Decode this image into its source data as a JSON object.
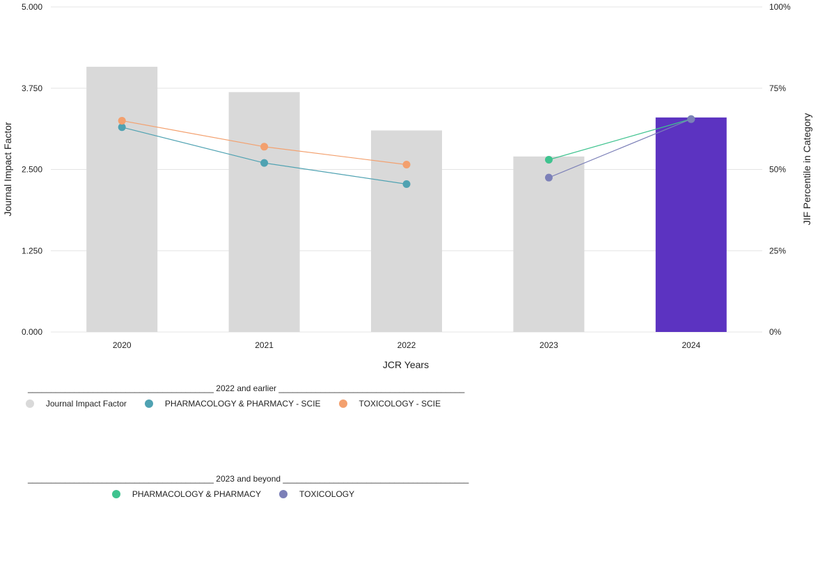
{
  "chart_data": {
    "type": "bar",
    "categories": [
      "2020",
      "2021",
      "2022",
      "2023",
      "2024"
    ],
    "bars": {
      "name": "Journal Impact Factor",
      "values": [
        4.08,
        3.69,
        3.1,
        2.7,
        3.3
      ],
      "colors": [
        "#d9d9d9",
        "#d9d9d9",
        "#d9d9d9",
        "#d9d9d9",
        "#5c33c1"
      ]
    },
    "line_series": [
      {
        "name": "PHARMACOLOGY & PHARMACY - SCIE",
        "color": "#4fa2b2",
        "values": [
          63,
          52,
          45.5,
          null,
          null
        ]
      },
      {
        "name": "TOXICOLOGY - SCIE",
        "color": "#f3a06e",
        "values": [
          65,
          57,
          51.5,
          null,
          null
        ]
      },
      {
        "name": "PHARMACOLOGY & PHARMACY",
        "color": "#3fc38f",
        "values": [
          null,
          null,
          null,
          53,
          65.5
        ]
      },
      {
        "name": "TOXICOLOGY",
        "color": "#7c80b8",
        "values": [
          null,
          null,
          null,
          47.5,
          65.5
        ]
      }
    ],
    "y_left": {
      "label": "Journal Impact Factor",
      "range": [
        0,
        5
      ],
      "ticks": [
        "0.000",
        "1.250",
        "2.500",
        "3.750",
        "5.000"
      ]
    },
    "y_right": {
      "label": "JIF Percentile in Category",
      "range": [
        0,
        100
      ],
      "ticks": [
        "0%",
        "25%",
        "50%",
        "75%",
        "100%"
      ]
    },
    "xlabel": "JCR Years",
    "grid": true
  },
  "legend": {
    "group1": {
      "header": "________________________________________ 2022 and earlier ________________________________________",
      "items": [
        {
          "label": "Journal Impact Factor",
          "color": "#d9d9d9"
        },
        {
          "label": "PHARMACOLOGY & PHARMACY - SCIE",
          "color": "#4fa2b2"
        },
        {
          "label": "TOXICOLOGY - SCIE",
          "color": "#f3a06e"
        }
      ]
    },
    "group2": {
      "header": "________________________________________ 2023 and beyond ________________________________________",
      "items": [
        {
          "label": "PHARMACOLOGY & PHARMACY",
          "color": "#3fc38f"
        },
        {
          "label": "TOXICOLOGY",
          "color": "#7c80b8"
        }
      ]
    }
  }
}
